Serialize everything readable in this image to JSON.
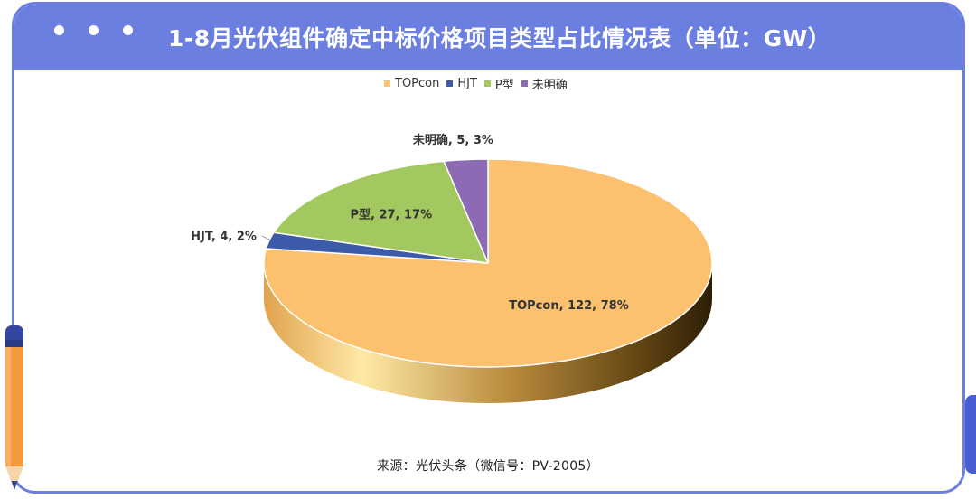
{
  "header": {
    "title": "1-8月光伏组件确定中标价格项目类型占比情况表（单位：GW）",
    "window_dots": 3,
    "color": "#6b7fe0"
  },
  "footer": {
    "source": "来源：光伏头条（微信号：PV-2005）"
  },
  "chart_data": {
    "type": "pie",
    "style": "3d",
    "legend_position": "top",
    "categories": [
      "TOPcon",
      "HJT",
      "P型",
      "未明确"
    ],
    "values": [
      122,
      4,
      27,
      5
    ],
    "percents": [
      "78%",
      "2%",
      "17%",
      "3%"
    ],
    "colors": [
      "#fcc16f",
      "#3c5ba8",
      "#a3c85f",
      "#8d6bb4"
    ],
    "data_labels": [
      "TOPcon, 122, 78%",
      "HJT, 4, 2%",
      "P型, 27, 17%",
      "未明确, 5, 3%"
    ]
  }
}
